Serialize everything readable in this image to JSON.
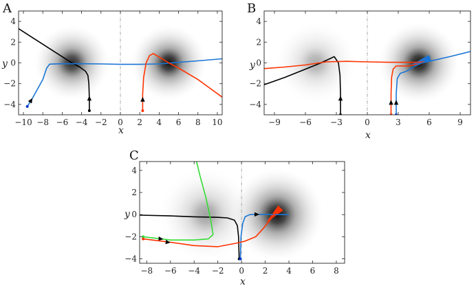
{
  "chart_data": [
    {
      "panel": "A",
      "type": "line",
      "xlabel": "x",
      "ylabel": "y",
      "xlim": [
        -10.5,
        10.5
      ],
      "ylim": [
        -5,
        5
      ],
      "xticks": [
        -10,
        -8,
        -6,
        -4,
        -2,
        0,
        2,
        4,
        6,
        8,
        10
      ],
      "yticks": [
        -4,
        -2,
        0,
        2,
        4
      ],
      "vline": 0,
      "blobs": [
        {
          "x": -5,
          "y": 0,
          "strength": 0.9
        },
        {
          "x": 5,
          "y": 0,
          "strength": 1.0
        }
      ],
      "series": [
        {
          "color": "#000000",
          "start": [
            -3.2,
            -4.6
          ],
          "points": [
            [
              -3.2,
              -4.6
            ],
            [
              -3.2,
              -3.5
            ],
            [
              -3.25,
              -2
            ],
            [
              -3.35,
              -1.2
            ],
            [
              -3.6,
              -0.8
            ],
            [
              -4.2,
              -0.4
            ],
            [
              -5,
              0
            ],
            [
              -6,
              0.6
            ],
            [
              -7,
              1.2
            ],
            [
              -8,
              1.8
            ],
            [
              -9,
              2.4
            ],
            [
              -10,
              3
            ],
            [
              -10.5,
              3.3
            ]
          ],
          "arrows": [
            [
              -3.2,
              -3.4
            ]
          ]
        },
        {
          "color": "#1a75d6",
          "start": [
            -9.6,
            -4.2
          ],
          "points": [
            [
              -9.6,
              -4.2
            ],
            [
              -9,
              -3.3
            ],
            [
              -8,
              -1.6
            ],
            [
              -7.6,
              -0.5
            ],
            [
              -7.3,
              -0.12
            ],
            [
              -6,
              -0.08
            ],
            [
              -4,
              -0.08
            ],
            [
              -2,
              -0.1
            ],
            [
              0,
              -0.14
            ],
            [
              2,
              -0.14
            ],
            [
              4,
              -0.1
            ],
            [
              6,
              0.05
            ],
            [
              8,
              0.2
            ],
            [
              10.5,
              0.4
            ]
          ],
          "arrows": [
            [
              -9.2,
              -3.6
            ]
          ]
        },
        {
          "color": "#ff3300",
          "start": [
            2.3,
            -4.6
          ],
          "points": [
            [
              2.3,
              -4.6
            ],
            [
              2.3,
              -3
            ],
            [
              2.4,
              -1.4
            ],
            [
              2.65,
              0
            ],
            [
              3.0,
              0.7
            ],
            [
              3.4,
              0.9
            ],
            [
              4.2,
              0.45
            ],
            [
              5,
              0
            ],
            [
              6,
              -0.5
            ],
            [
              8,
              -1.6
            ],
            [
              10.5,
              -3.3
            ]
          ],
          "arrows": [
            [
              2.3,
              -3.5
            ]
          ]
        }
      ]
    },
    {
      "panel": "B",
      "type": "line",
      "xlabel": "x",
      "ylabel": "y",
      "xlim": [
        -10,
        10
      ],
      "ylim": [
        -5,
        5
      ],
      "xticks": [
        -9,
        -6,
        -3,
        0,
        3,
        6,
        9
      ],
      "yticks": [
        -4,
        -2,
        0,
        2,
        4
      ],
      "vline": 0,
      "blobs": [
        {
          "x": -5,
          "y": 0,
          "strength": 0.35
        },
        {
          "x": 5,
          "y": 0,
          "strength": 1.0
        }
      ],
      "series": [
        {
          "color": "#000000",
          "start": [
            -2.6,
            -5
          ],
          "points": [
            [
              -2.6,
              -5
            ],
            [
              -2.6,
              -3
            ],
            [
              -2.65,
              -1.2
            ],
            [
              -2.8,
              0
            ],
            [
              -3.2,
              0.6
            ],
            [
              -4.5,
              0
            ],
            [
              -6,
              -0.6
            ],
            [
              -8,
              -1.4
            ],
            [
              -10,
              -2.1
            ]
          ],
          "arrows": [
            [
              -2.6,
              -3.4
            ]
          ]
        },
        {
          "color": "#ff3300",
          "start": [
            2.3,
            -5
          ],
          "points": [
            [
              2.3,
              -5
            ],
            [
              2.3,
              -3
            ],
            [
              2.35,
              -1.4
            ],
            [
              2.5,
              -0.6
            ],
            [
              2.8,
              -0.3
            ],
            [
              4,
              -0.3
            ],
            [
              5,
              -0.1
            ],
            [
              5.5,
              0.1
            ],
            [
              4.5,
              0.05
            ],
            [
              2,
              0.06
            ],
            [
              0,
              0.1
            ],
            [
              -2,
              0.15
            ],
            [
              -4,
              0.1
            ],
            [
              -6,
              -0.2
            ],
            [
              -8,
              -0.4
            ],
            [
              -10,
              -0.55
            ]
          ],
          "arrows": [
            [
              2.3,
              -3.8
            ]
          ]
        },
        {
          "color": "#1a75d6",
          "start": [
            2.8,
            -5
          ],
          "points": [
            [
              2.8,
              -5
            ],
            [
              2.8,
              -3
            ],
            [
              2.9,
              -1.5
            ],
            [
              3.2,
              -1
            ],
            [
              3.8,
              -0.8
            ],
            [
              4.6,
              -0.3
            ],
            [
              5.3,
              0
            ],
            [
              6,
              0.15
            ],
            [
              8,
              0.6
            ],
            [
              10,
              1.1
            ]
          ],
          "arrows": [
            [
              2.8,
              -3.8
            ]
          ]
        }
      ],
      "wedges": [
        {
          "color": "#1a75d6",
          "from": [
            4.2,
            -0.2
          ],
          "to": [
            6.1,
            0.45
          ]
        }
      ]
    },
    {
      "panel": "C",
      "type": "line",
      "xlabel": "x",
      "ylabel": "y",
      "xlim": [
        -8.6,
        8.7
      ],
      "ylim": [
        -4.4,
        4.8
      ],
      "xticks": [
        -8,
        -6,
        -4,
        -2,
        0,
        2,
        4,
        6,
        8
      ],
      "yticks": [
        -4,
        -2,
        0,
        2,
        4
      ],
      "vline": 0,
      "blobs": [
        {
          "x": -3,
          "y": 0,
          "strength": 0.4
        },
        {
          "x": 3,
          "y": 0,
          "strength": 1.0
        }
      ],
      "series": [
        {
          "color": "#000000",
          "start": [
            -0.2,
            -4
          ],
          "points": [
            [
              -0.2,
              -4
            ],
            [
              -0.25,
              -2
            ],
            [
              -0.35,
              -1
            ],
            [
              -0.6,
              -0.5
            ],
            [
              -1.2,
              -0.3
            ],
            [
              -2,
              -0.25
            ],
            [
              -4,
              -0.2
            ],
            [
              -6,
              -0.12
            ],
            [
              -8.6,
              -0.05
            ]
          ],
          "arrows": []
        },
        {
          "color": "#1a75d6",
          "start": [
            -0.1,
            -4
          ],
          "points": [
            [
              -0.1,
              -4
            ],
            [
              -0.05,
              -2
            ],
            [
              0.1,
              -0.8
            ],
            [
              0.3,
              -0.2
            ],
            [
              0.7,
              0
            ],
            [
              1.5,
              0.02
            ],
            [
              3,
              0
            ],
            [
              4,
              0
            ]
          ],
          "arrows": [
            [
              1.3,
              0.02
            ]
          ]
        },
        {
          "color": "#33dd33",
          "start": [
            -8.3,
            -2
          ],
          "points": [
            [
              -8.3,
              -2
            ],
            [
              -6,
              -2.3
            ],
            [
              -4,
              -2.3
            ],
            [
              -2.8,
              -2.2
            ],
            [
              -2.4,
              -1.8
            ],
            [
              -2.6,
              -0.5
            ],
            [
              -3,
              1.5
            ],
            [
              -3.5,
              3.5
            ],
            [
              -3.8,
              4.8
            ]
          ],
          "arrows": [
            [
              -6.8,
              -2.2
            ]
          ]
        },
        {
          "color": "#ff3300",
          "start": [
            -8.3,
            -2.2
          ],
          "points": [
            [
              -8.3,
              -2.2
            ],
            [
              -6,
              -2.5
            ],
            [
              -4,
              -2.8
            ],
            [
              -2,
              -2.9
            ],
            [
              -0.5,
              -2.6
            ],
            [
              0.3,
              -2.4
            ],
            [
              1.2,
              -2
            ],
            [
              1.8,
              -1.3
            ],
            [
              2.4,
              -0.5
            ],
            [
              3,
              0.4
            ]
          ],
          "arrows": [
            [
              -6.2,
              -2.5
            ]
          ]
        }
      ],
      "wedges": [
        {
          "color": "#ff3300",
          "from": [
            2.1,
            -0.7
          ],
          "to": [
            3.3,
            0.6
          ]
        }
      ]
    }
  ]
}
